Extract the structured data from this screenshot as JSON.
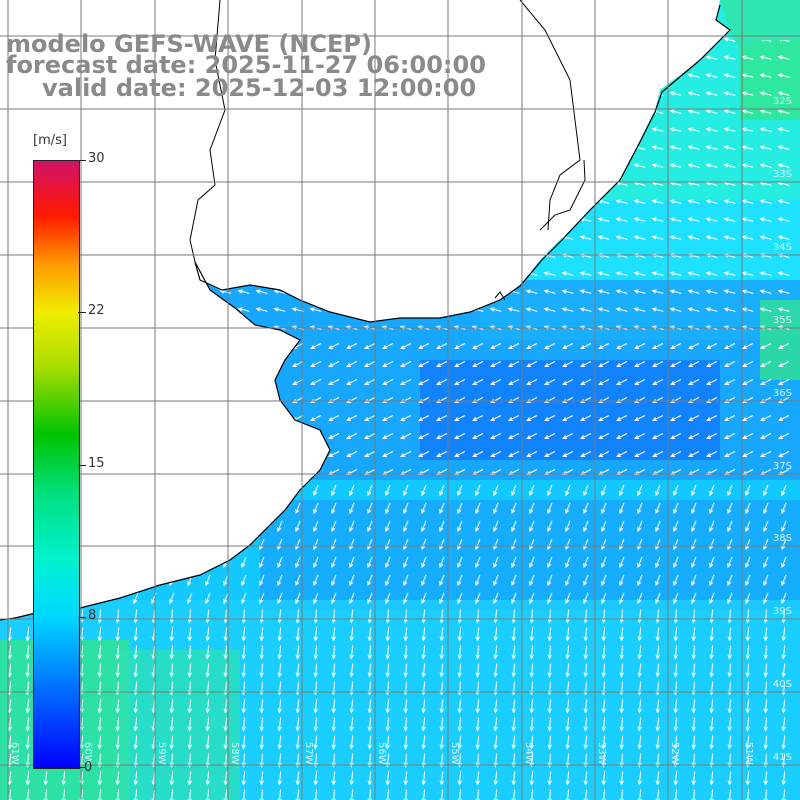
{
  "header": {
    "model": "modelo GEFS-WAVE (NCEP)",
    "forecast": "forecast date: 2025-11-27 06:00:00",
    "valid": "valid date: 2025-12-03 12:00:00"
  },
  "colorbar": {
    "unit": "[m/s]",
    "max": "30",
    "ticks": [
      "22",
      "15",
      "8"
    ],
    "min": "0"
  },
  "grid": {
    "lat_labels": [
      "32S",
      "33S",
      "34S",
      "35S",
      "36S",
      "37S",
      "38S",
      "39S",
      "40S",
      "41S"
    ],
    "lon_labels": [
      "61W",
      "60W",
      "59W",
      "58W",
      "57W",
      "56W",
      "55W",
      "54W",
      "53W",
      "52W",
      "51W"
    ]
  },
  "colors": {
    "ocean_deep_blue": "#1177ff",
    "ocean_mid": "#18b6ff",
    "ocean_cyan": "#22eaff",
    "ocean_green": "#33e68a",
    "land": "#ffffff",
    "coast": "#000000",
    "vectors": "#ffffff",
    "gridlines": "#7a7a7a"
  }
}
